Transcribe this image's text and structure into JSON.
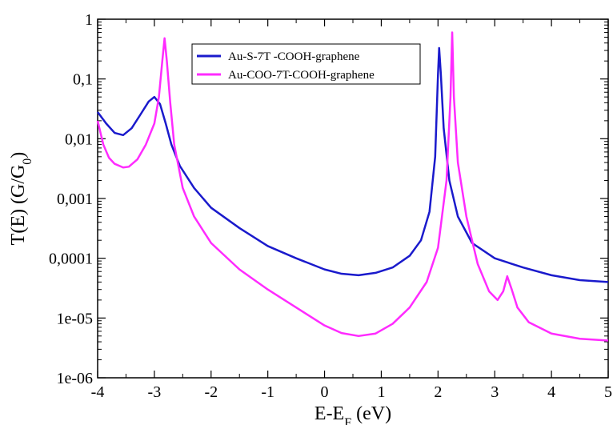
{
  "chart_data": {
    "type": "line",
    "xlabel": "E-E_F (eV)",
    "ylabel": "T(E) (G/G_0)",
    "xlim": [
      -4,
      5
    ],
    "ylim": [
      1e-06,
      1
    ],
    "yscale": "log",
    "x_ticks": [
      "-4",
      "-3",
      "-2",
      "-1",
      "0",
      "1",
      "2",
      "3",
      "4",
      "5"
    ],
    "y_ticks": [
      "1e-06",
      "1e-05",
      "0,0001",
      "0,001",
      "0,01",
      "0,1",
      "1"
    ],
    "legend_position": "top-center",
    "series": [
      {
        "name": "Au-S-7T -COOH-graphene",
        "color": "#1a1acc",
        "points": [
          [
            -4.0,
            0.028
          ],
          [
            -3.85,
            0.018
          ],
          [
            -3.7,
            0.0125
          ],
          [
            -3.55,
            0.0115
          ],
          [
            -3.4,
            0.015
          ],
          [
            -3.25,
            0.025
          ],
          [
            -3.1,
            0.042
          ],
          [
            -3.0,
            0.05
          ],
          [
            -2.9,
            0.038
          ],
          [
            -2.8,
            0.018
          ],
          [
            -2.7,
            0.008
          ],
          [
            -2.55,
            0.0035
          ],
          [
            -2.3,
            0.0015
          ],
          [
            -2.0,
            0.0007
          ],
          [
            -1.5,
            0.00032
          ],
          [
            -1.0,
            0.00016
          ],
          [
            -0.5,
            0.0001
          ],
          [
            0.0,
            6.5e-05
          ],
          [
            0.3,
            5.5e-05
          ],
          [
            0.6,
            5.2e-05
          ],
          [
            0.9,
            5.7e-05
          ],
          [
            1.2,
            7e-05
          ],
          [
            1.5,
            0.00011
          ],
          [
            1.7,
            0.0002
          ],
          [
            1.85,
            0.0006
          ],
          [
            1.95,
            0.005
          ],
          [
            2.0,
            0.12
          ],
          [
            2.02,
            0.33
          ],
          [
            2.05,
            0.12
          ],
          [
            2.1,
            0.015
          ],
          [
            2.2,
            0.002
          ],
          [
            2.35,
            0.0005
          ],
          [
            2.6,
            0.00018
          ],
          [
            3.0,
            0.0001
          ],
          [
            3.5,
            7e-05
          ],
          [
            4.0,
            5.2e-05
          ],
          [
            4.5,
            4.3e-05
          ],
          [
            5.0,
            4e-05
          ]
        ]
      },
      {
        "name": "Au-COO-7T-COOH-graphene",
        "color": "#ff2bff",
        "points": [
          [
            -4.0,
            0.02
          ],
          [
            -3.9,
            0.008
          ],
          [
            -3.8,
            0.0048
          ],
          [
            -3.7,
            0.0038
          ],
          [
            -3.55,
            0.0033
          ],
          [
            -3.45,
            0.0034
          ],
          [
            -3.3,
            0.0045
          ],
          [
            -3.15,
            0.008
          ],
          [
            -3.0,
            0.018
          ],
          [
            -2.92,
            0.05
          ],
          [
            -2.86,
            0.2
          ],
          [
            -2.82,
            0.48
          ],
          [
            -2.78,
            0.2
          ],
          [
            -2.72,
            0.04
          ],
          [
            -2.65,
            0.008
          ],
          [
            -2.5,
            0.0015
          ],
          [
            -2.3,
            0.0005
          ],
          [
            -2.0,
            0.00018
          ],
          [
            -1.5,
            6.5e-05
          ],
          [
            -1.0,
            3e-05
          ],
          [
            -0.5,
            1.5e-05
          ],
          [
            0.0,
            7.5e-06
          ],
          [
            0.3,
            5.6e-06
          ],
          [
            0.6,
            5e-06
          ],
          [
            0.9,
            5.5e-06
          ],
          [
            1.2,
            8e-06
          ],
          [
            1.5,
            1.5e-05
          ],
          [
            1.8,
            4e-05
          ],
          [
            2.0,
            0.00015
          ],
          [
            2.15,
            0.002
          ],
          [
            2.22,
            0.05
          ],
          [
            2.25,
            0.6
          ],
          [
            2.28,
            0.05
          ],
          [
            2.35,
            0.004
          ],
          [
            2.5,
            0.0005
          ],
          [
            2.7,
            8e-05
          ],
          [
            2.9,
            2.8e-05
          ],
          [
            3.05,
            2e-05
          ],
          [
            3.15,
            2.8e-05
          ],
          [
            3.22,
            5e-05
          ],
          [
            3.3,
            3e-05
          ],
          [
            3.4,
            1.5e-05
          ],
          [
            3.6,
            8.5e-06
          ],
          [
            4.0,
            5.5e-06
          ],
          [
            4.5,
            4.5e-06
          ],
          [
            5.0,
            4.2e-06
          ]
        ]
      }
    ]
  }
}
